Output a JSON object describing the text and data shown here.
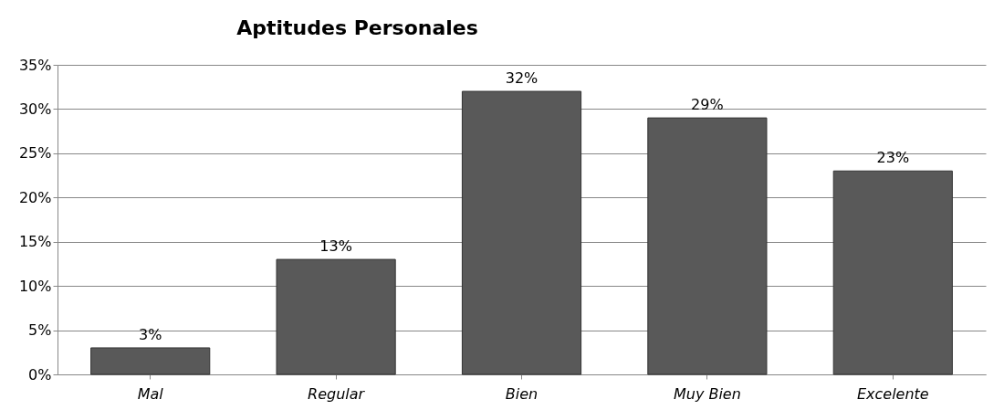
{
  "chart_data": {
    "type": "bar",
    "title": "Aptitudes Personales",
    "categories": [
      "Mal",
      "Regular",
      "Bien",
      "Muy Bien",
      "Excelente"
    ],
    "values": [
      3,
      13,
      32,
      29,
      23
    ],
    "value_labels": [
      "3%",
      "13%",
      "32%",
      "29%",
      "23%"
    ],
    "color": "#595959",
    "ylim": [
      0,
      35
    ],
    "yticks": [
      {
        "value": 0,
        "label": "0%"
      },
      {
        "value": 5,
        "label": "5%"
      },
      {
        "value": 10,
        "label": "10%"
      },
      {
        "value": 15,
        "label": "15%"
      },
      {
        "value": 20,
        "label": "20%"
      },
      {
        "value": 25,
        "label": "25%"
      },
      {
        "value": 30,
        "label": "30%"
      },
      {
        "value": 35,
        "label": "35%"
      }
    ],
    "grid": "y"
  }
}
